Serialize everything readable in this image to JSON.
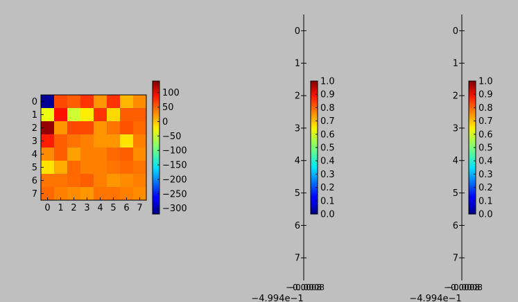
{
  "figure": {
    "background": "#bfbfbf"
  },
  "chart_data": [
    {
      "type": "heatmap",
      "colormap": "jet",
      "rows": [
        "0",
        "1",
        "2",
        "3",
        "4",
        "5",
        "6",
        "7"
      ],
      "columns": [
        "0",
        "1",
        "2",
        "3",
        "4",
        "5",
        "6",
        "7"
      ],
      "values": [
        [
          -310,
          50,
          40,
          60,
          15,
          60,
          0,
          20
        ],
        [
          -40,
          75,
          -55,
          -25,
          60,
          -15,
          40,
          40
        ],
        [
          130,
          15,
          50,
          50,
          15,
          30,
          45,
          35
        ],
        [
          70,
          40,
          30,
          25,
          15,
          15,
          -20,
          25
        ],
        [
          20,
          40,
          10,
          25,
          25,
          35,
          40,
          20
        ],
        [
          -20,
          5,
          35,
          25,
          25,
          30,
          35,
          30
        ],
        [
          30,
          30,
          35,
          40,
          25,
          15,
          20,
          25
        ],
        [
          35,
          25,
          20,
          15,
          30,
          30,
          25,
          20
        ]
      ],
      "colorbar": {
        "min": -320,
        "max": 140,
        "ticks": [
          100,
          50,
          0,
          -50,
          -100,
          -150,
          -200,
          -250,
          -300
        ],
        "tick_labels": [
          "100",
          "50",
          "0",
          "−50",
          "−100",
          "−150",
          "−200",
          "−250",
          "−300"
        ]
      }
    },
    {
      "type": "heatmap",
      "note_visible": "empty axes, zero-width x-range",
      "y_ticks": [
        "0",
        "1",
        "2",
        "3",
        "4",
        "5",
        "6",
        "7"
      ],
      "y_range": [
        7.7,
        -0.5
      ],
      "x_offset_label": "−4.994e−1",
      "x_tick_label_overlap": "−0.0008",
      "colorbar": {
        "min": 0,
        "max": 1,
        "ticks": [
          1.0,
          0.9,
          0.8,
          0.7,
          0.6,
          0.5,
          0.4,
          0.3,
          0.2,
          0.1,
          0.0
        ],
        "tick_labels": [
          "1.0",
          "0.9",
          "0.8",
          "0.7",
          "0.6",
          "0.5",
          "0.4",
          "0.3",
          "0.2",
          "0.1",
          "0.0"
        ]
      }
    },
    {
      "type": "heatmap",
      "note_visible": "empty axes, zero-width x-range",
      "y_ticks": [
        "0",
        "1",
        "2",
        "3",
        "4",
        "5",
        "6",
        "7"
      ],
      "y_range": [
        7.7,
        -0.5
      ],
      "x_offset_label": "−4.994e−1",
      "x_tick_label_overlap": "−0.0008",
      "colorbar": {
        "min": 0,
        "max": 1,
        "ticks": [
          1.0,
          0.9,
          0.8,
          0.7,
          0.6,
          0.5,
          0.4,
          0.3,
          0.2,
          0.1,
          0.0
        ],
        "tick_labels": [
          "1.0",
          "0.9",
          "0.8",
          "0.7",
          "0.6",
          "0.5",
          "0.4",
          "0.3",
          "0.2",
          "0.1",
          "0.0"
        ]
      }
    }
  ]
}
